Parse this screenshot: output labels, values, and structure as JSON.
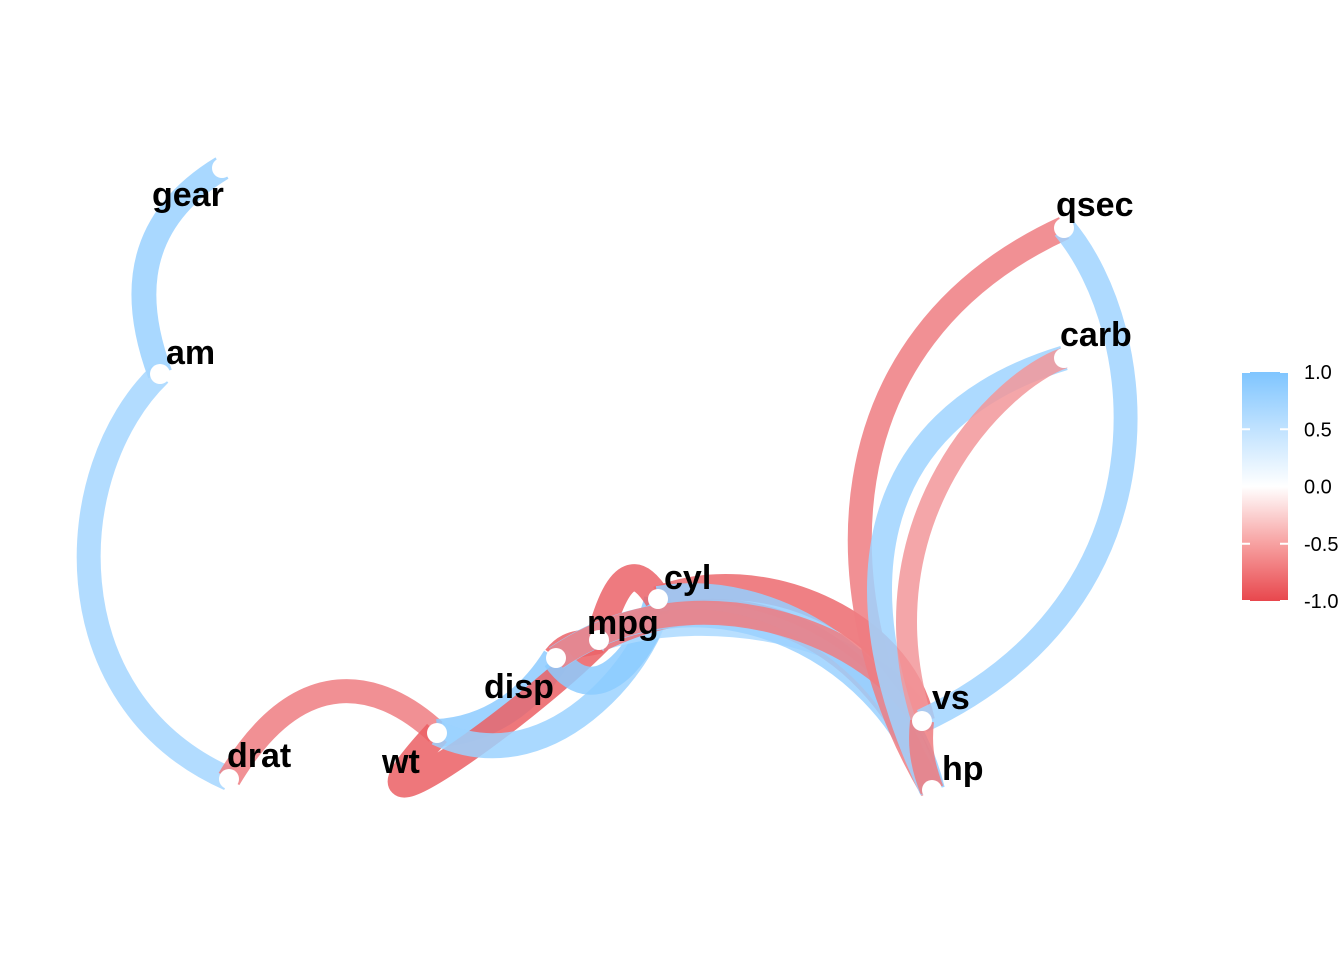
{
  "chart_data": {
    "type": "network",
    "nodes": [
      "gear",
      "am",
      "drat",
      "wt",
      "disp",
      "mpg",
      "cyl",
      "vs",
      "hp",
      "carb",
      "qsec"
    ],
    "edges": [
      {
        "from": "gear",
        "to": "am",
        "r": 0.79
      },
      {
        "from": "am",
        "to": "drat",
        "r": 0.71
      },
      {
        "from": "drat",
        "to": "wt",
        "r": -0.71
      },
      {
        "from": "wt",
        "to": "disp",
        "r": 0.89
      },
      {
        "from": "wt",
        "to": "mpg",
        "r": -0.87
      },
      {
        "from": "wt",
        "to": "cyl",
        "r": 0.78
      },
      {
        "from": "disp",
        "to": "mpg",
        "r": -0.85
      },
      {
        "from": "disp",
        "to": "cyl",
        "r": 0.9
      },
      {
        "from": "mpg",
        "to": "cyl",
        "r": -0.85
      },
      {
        "from": "mpg",
        "to": "vs",
        "r": 0.66
      },
      {
        "from": "mpg",
        "to": "hp",
        "r": -0.78
      },
      {
        "from": "cyl",
        "to": "vs",
        "r": -0.81
      },
      {
        "from": "cyl",
        "to": "hp",
        "r": 0.83
      },
      {
        "from": "disp",
        "to": "hp",
        "r": 0.79
      },
      {
        "from": "disp",
        "to": "vs",
        "r": -0.71
      },
      {
        "from": "hp",
        "to": "qsec",
        "r": -0.71
      },
      {
        "from": "hp",
        "to": "carb",
        "r": 0.75
      },
      {
        "from": "vs",
        "to": "carb",
        "r": -0.57
      },
      {
        "from": "vs",
        "to": "qsec",
        "r": 0.74
      },
      {
        "from": "hp",
        "to": "vs",
        "r": -0.72
      }
    ],
    "legend": {
      "ticks": [
        1.0,
        0.5,
        0.0,
        -0.5,
        -1.0
      ],
      "tick_labels": [
        "1.0",
        "0.5",
        "0.0",
        "-0.5",
        "-1.0"
      ],
      "colors": {
        "high": "#7fc5ff",
        "mid": "#ffffff",
        "low": "#e8474d"
      },
      "placement": "right"
    }
  }
}
